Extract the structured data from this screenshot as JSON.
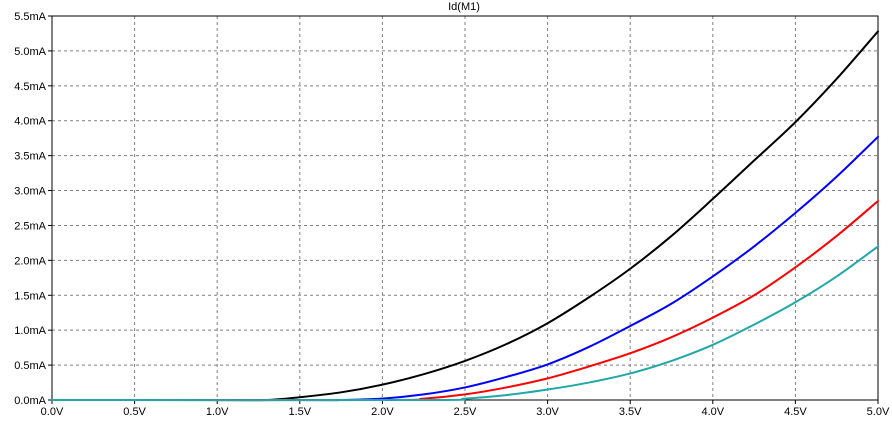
{
  "chart_data": {
    "type": "line",
    "title": "Id(M1)",
    "xlabel": "",
    "ylabel": "",
    "xlim": [
      0.0,
      5.0
    ],
    "ylim": [
      0.0,
      5.5
    ],
    "grid": true,
    "x_ticks": [
      "0.0V",
      "0.5V",
      "1.0V",
      "1.5V",
      "2.0V",
      "2.5V",
      "3.0V",
      "3.5V",
      "4.0V",
      "4.5V",
      "5.0V"
    ],
    "y_ticks": [
      "0.0mA",
      "0.5mA",
      "1.0mA",
      "1.5mA",
      "2.0mA",
      "2.5mA",
      "3.0mA",
      "3.5mA",
      "4.0mA",
      "4.5mA",
      "5.0mA",
      "5.5mA"
    ],
    "colors": {
      "background": "#ffffff",
      "grid": "#808080",
      "axis": "#000000"
    },
    "series": [
      {
        "color": "#000000",
        "x": [
          0.0,
          1.0,
          1.3,
          1.5,
          1.75,
          2.0,
          2.25,
          2.5,
          2.75,
          3.0,
          3.25,
          3.5,
          3.75,
          4.0,
          4.25,
          4.5,
          4.75,
          5.0
        ],
        "y": [
          0.0,
          0.0,
          0.0,
          0.04,
          0.11,
          0.22,
          0.37,
          0.56,
          0.8,
          1.1,
          1.47,
          1.88,
          2.35,
          2.88,
          3.43,
          3.98,
          4.6,
          5.28
        ]
      },
      {
        "color": "#0000ff",
        "x": [
          0.0,
          1.5,
          1.75,
          2.0,
          2.25,
          2.5,
          2.75,
          3.0,
          3.25,
          3.5,
          3.75,
          4.0,
          4.25,
          4.5,
          4.75,
          5.0
        ],
        "y": [
          0.0,
          0.0,
          0.0,
          0.02,
          0.08,
          0.18,
          0.33,
          0.51,
          0.76,
          1.06,
          1.38,
          1.77,
          2.2,
          2.68,
          3.2,
          3.77
        ]
      },
      {
        "color": "#ff0000",
        "x": [
          0.0,
          2.0,
          2.25,
          2.5,
          2.75,
          3.0,
          3.25,
          3.5,
          3.75,
          4.0,
          4.25,
          4.5,
          4.75,
          5.0
        ],
        "y": [
          0.0,
          0.0,
          0.02,
          0.08,
          0.18,
          0.31,
          0.48,
          0.67,
          0.9,
          1.18,
          1.5,
          1.9,
          2.35,
          2.85
        ]
      },
      {
        "color": "#20a8a8",
        "x": [
          0.0,
          2.25,
          2.5,
          2.75,
          3.0,
          3.25,
          3.5,
          3.75,
          4.0,
          4.25,
          4.5,
          4.75,
          5.0
        ],
        "y": [
          0.0,
          0.0,
          0.02,
          0.07,
          0.15,
          0.25,
          0.38,
          0.56,
          0.79,
          1.08,
          1.4,
          1.77,
          2.2
        ]
      }
    ]
  }
}
